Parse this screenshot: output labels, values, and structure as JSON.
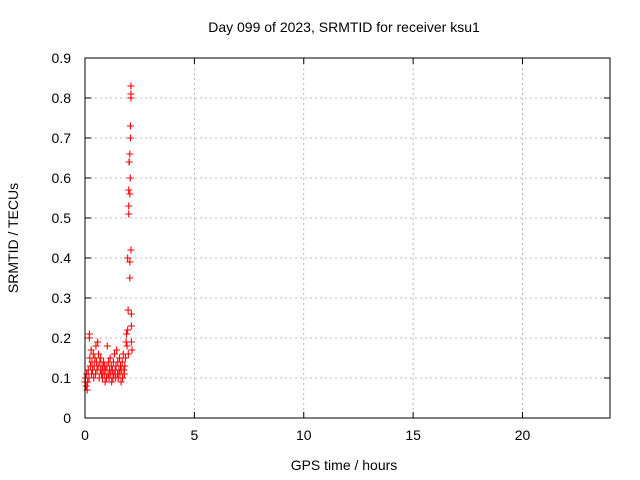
{
  "chart_data": {
    "type": "scatter",
    "title": "Day 099 of 2023, SRMTID for receiver ksu1",
    "xlabel": "GPS time / hours",
    "ylabel": "SRMTID / TECUs",
    "xlim": [
      0,
      24
    ],
    "ylim": [
      0,
      0.9
    ],
    "xticks": [
      0,
      5,
      10,
      15,
      20
    ],
    "xtick_labels": [
      "0",
      "5",
      "10",
      "15",
      "20"
    ],
    "yticks": [
      0,
      0.1,
      0.2,
      0.3,
      0.4,
      0.5,
      0.6,
      0.7,
      0.8,
      0.9
    ],
    "ytick_labels": [
      "0",
      "0.1",
      "0.2",
      "0.3",
      "0.4",
      "0.5",
      "0.6",
      "0.7",
      "0.8",
      "0.9"
    ],
    "grid": true,
    "marker": "+",
    "color": "#ff0000",
    "series": [
      {
        "name": "SRMTID",
        "points": [
          [
            0.0,
            0.09
          ],
          [
            0.02,
            0.1
          ],
          [
            0.05,
            0.08
          ],
          [
            0.08,
            0.11
          ],
          [
            0.1,
            0.07
          ],
          [
            0.12,
            0.09
          ],
          [
            0.15,
            0.12
          ],
          [
            0.18,
            0.1
          ],
          [
            0.2,
            0.21
          ],
          [
            0.2,
            0.2
          ],
          [
            0.22,
            0.15
          ],
          [
            0.25,
            0.13
          ],
          [
            0.28,
            0.17
          ],
          [
            0.3,
            0.11
          ],
          [
            0.32,
            0.14
          ],
          [
            0.35,
            0.12
          ],
          [
            0.38,
            0.16
          ],
          [
            0.4,
            0.1
          ],
          [
            0.42,
            0.13
          ],
          [
            0.45,
            0.15
          ],
          [
            0.48,
            0.11
          ],
          [
            0.5,
            0.18
          ],
          [
            0.52,
            0.14
          ],
          [
            0.55,
            0.12
          ],
          [
            0.58,
            0.19
          ],
          [
            0.6,
            0.13
          ],
          [
            0.62,
            0.16
          ],
          [
            0.65,
            0.1
          ],
          [
            0.68,
            0.14
          ],
          [
            0.7,
            0.12
          ],
          [
            0.72,
            0.15
          ],
          [
            0.75,
            0.11
          ],
          [
            0.78,
            0.13
          ],
          [
            0.8,
            0.1
          ],
          [
            0.82,
            0.12
          ],
          [
            0.85,
            0.14
          ],
          [
            0.88,
            0.11
          ],
          [
            0.9,
            0.13
          ],
          [
            0.92,
            0.09
          ],
          [
            0.95,
            0.12
          ],
          [
            0.98,
            0.1
          ],
          [
            1.0,
            0.13
          ],
          [
            1.02,
            0.18
          ],
          [
            1.05,
            0.11
          ],
          [
            1.08,
            0.14
          ],
          [
            1.1,
            0.1
          ],
          [
            1.12,
            0.12
          ],
          [
            1.15,
            0.15
          ],
          [
            1.18,
            0.11
          ],
          [
            1.2,
            0.13
          ],
          [
            1.22,
            0.09
          ],
          [
            1.25,
            0.12
          ],
          [
            1.28,
            0.1
          ],
          [
            1.3,
            0.14
          ],
          [
            1.32,
            0.11
          ],
          [
            1.35,
            0.16
          ],
          [
            1.38,
            0.12
          ],
          [
            1.4,
            0.1
          ],
          [
            1.42,
            0.13
          ],
          [
            1.45,
            0.17
          ],
          [
            1.48,
            0.11
          ],
          [
            1.5,
            0.14
          ],
          [
            1.52,
            0.1
          ],
          [
            1.55,
            0.12
          ],
          [
            1.58,
            0.15
          ],
          [
            1.6,
            0.11
          ],
          [
            1.62,
            0.13
          ],
          [
            1.65,
            0.09
          ],
          [
            1.68,
            0.12
          ],
          [
            1.7,
            0.14
          ],
          [
            1.72,
            0.1
          ],
          [
            1.75,
            0.16
          ],
          [
            1.78,
            0.12
          ],
          [
            1.8,
            0.11
          ],
          [
            1.82,
            0.13
          ],
          [
            1.85,
            0.15
          ],
          [
            1.88,
            0.19
          ],
          [
            1.9,
            0.21
          ],
          [
            1.92,
            0.18
          ],
          [
            1.95,
            0.22
          ],
          [
            1.95,
            0.4
          ],
          [
            1.97,
            0.27
          ],
          [
            1.98,
            0.16
          ],
          [
            2.0,
            0.51
          ],
          [
            2.0,
            0.53
          ],
          [
            2.0,
            0.57
          ],
          [
            2.02,
            0.64
          ],
          [
            2.02,
            0.64
          ],
          [
            2.05,
            0.66
          ],
          [
            2.05,
            0.56
          ],
          [
            2.05,
            0.39
          ],
          [
            2.05,
            0.35
          ],
          [
            2.07,
            0.6
          ],
          [
            2.08,
            0.7
          ],
          [
            2.08,
            0.73
          ],
          [
            2.1,
            0.8
          ],
          [
            2.1,
            0.81
          ],
          [
            2.1,
            0.83
          ],
          [
            2.1,
            0.42
          ],
          [
            2.12,
            0.26
          ],
          [
            2.12,
            0.23
          ],
          [
            2.12,
            0.19
          ],
          [
            2.15,
            0.17
          ]
        ]
      }
    ]
  }
}
